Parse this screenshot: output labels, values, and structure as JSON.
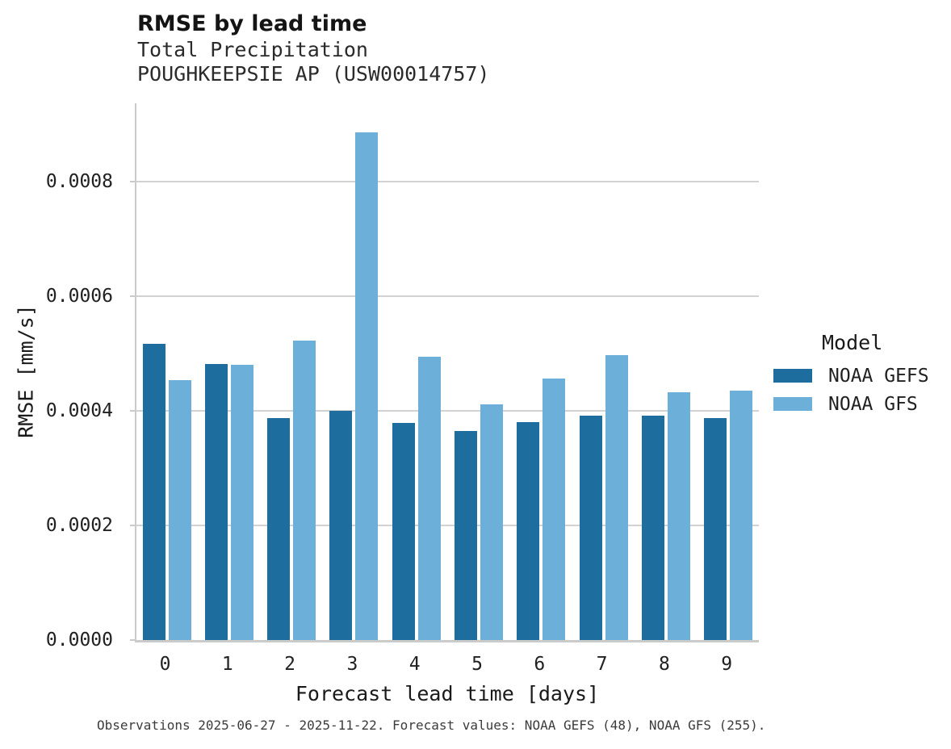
{
  "chart_data": {
    "type": "bar",
    "title": "RMSE by lead time",
    "subtitle": [
      "Total Precipitation",
      "POUGHKEEPSIE AP (USW00014757)"
    ],
    "xlabel": "Forecast lead time [days]",
    "ylabel": "RMSE [mm/s]",
    "categories": [
      "0",
      "1",
      "2",
      "3",
      "4",
      "5",
      "6",
      "7",
      "8",
      "9"
    ],
    "series": [
      {
        "name": "NOAA GEFS",
        "color": "#1d6e9e",
        "values": [
          0.000517,
          0.000482,
          0.000387,
          0.0004,
          0.000379,
          0.000365,
          0.00038,
          0.000391,
          0.000392,
          0.000387
        ]
      },
      {
        "name": "NOAA GFS",
        "color": "#6cb0d9",
        "values": [
          0.000453,
          0.000481,
          0.000523,
          0.000886,
          0.000495,
          0.000412,
          0.000457,
          0.000497,
          0.000433,
          0.000435
        ]
      }
    ],
    "ylim": [
      0,
      0.0009366
    ],
    "yticks": [
      {
        "value": 0.0,
        "label": "0.0000"
      },
      {
        "value": 0.0002,
        "label": "0.0002"
      },
      {
        "value": 0.0004,
        "label": "0.0004"
      },
      {
        "value": 0.0006,
        "label": "0.0006"
      },
      {
        "value": 0.0008,
        "label": "0.0008"
      }
    ],
    "grid": "horizontal",
    "legend": {
      "title": "Model",
      "position": "right"
    },
    "caption": "Observations 2025-06-27 - 2025-11-22. Forecast values: NOAA GEFS (48), NOAA GFS (255)."
  },
  "colors": {
    "grid": "#d2d2d2",
    "spine": "#cbcbcb"
  }
}
